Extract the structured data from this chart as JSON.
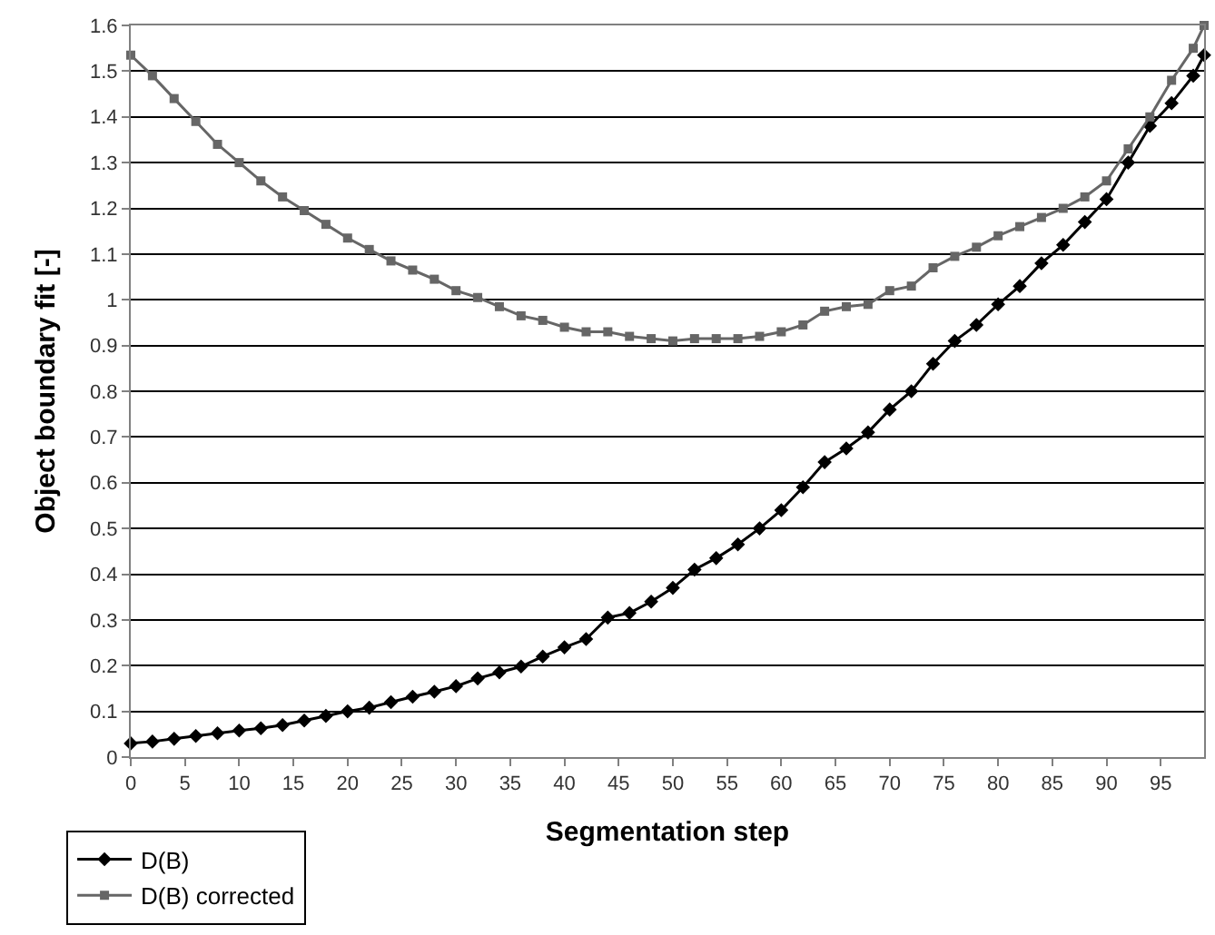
{
  "chart_data": {
    "type": "line",
    "xlabel": "Segmentation step",
    "ylabel": "Object boundary fit [-]",
    "x": [
      0,
      2,
      4,
      6,
      8,
      10,
      12,
      14,
      16,
      18,
      20,
      22,
      24,
      26,
      28,
      30,
      32,
      34,
      36,
      38,
      40,
      42,
      44,
      46,
      48,
      50,
      52,
      54,
      56,
      58,
      60,
      62,
      64,
      66,
      68,
      70,
      72,
      74,
      76,
      78,
      80,
      82,
      84,
      86,
      88,
      90,
      92,
      94,
      96,
      98,
      99
    ],
    "series": [
      {
        "name": "D(B)",
        "color": "#000000",
        "marker": "diamond",
        "values": [
          0.03,
          0.034,
          0.04,
          0.046,
          0.052,
          0.058,
          0.063,
          0.07,
          0.08,
          0.09,
          0.1,
          0.108,
          0.12,
          0.132,
          0.143,
          0.155,
          0.172,
          0.185,
          0.198,
          0.22,
          0.24,
          0.258,
          0.305,
          0.315,
          0.34,
          0.37,
          0.41,
          0.435,
          0.465,
          0.5,
          0.54,
          0.59,
          0.645,
          0.675,
          0.71,
          0.76,
          0.8,
          0.86,
          0.91,
          0.945,
          0.99,
          1.03,
          1.08,
          1.12,
          1.17,
          1.22,
          1.3,
          1.38,
          1.43,
          1.49,
          1.535
        ]
      },
      {
        "name": "D(B) corrected",
        "color": "#666666",
        "marker": "square",
        "values": [
          1.535,
          1.49,
          1.44,
          1.39,
          1.34,
          1.3,
          1.26,
          1.225,
          1.195,
          1.165,
          1.135,
          1.11,
          1.085,
          1.065,
          1.045,
          1.02,
          1.005,
          0.985,
          0.965,
          0.955,
          0.94,
          0.93,
          0.93,
          0.92,
          0.915,
          0.91,
          0.915,
          0.915,
          0.915,
          0.92,
          0.93,
          0.945,
          0.975,
          0.985,
          0.99,
          1.02,
          1.03,
          1.07,
          1.095,
          1.115,
          1.14,
          1.16,
          1.18,
          1.2,
          1.225,
          1.26,
          1.33,
          1.4,
          1.48,
          1.55,
          1.6
        ]
      }
    ],
    "xlim": [
      0,
      99
    ],
    "xticks": [
      0,
      5,
      10,
      15,
      20,
      25,
      30,
      35,
      40,
      45,
      50,
      55,
      60,
      65,
      70,
      75,
      80,
      85,
      90,
      95
    ],
    "ylim": [
      0,
      1.6
    ],
    "yticks": [
      0,
      0.1,
      0.2,
      0.3,
      0.4,
      0.5,
      0.6,
      0.7,
      0.8,
      0.9,
      1,
      1.1,
      1.2,
      1.3,
      1.4,
      1.5,
      1.6
    ],
    "grid": "y",
    "legend": "bottom left",
    "line_style": "solid"
  }
}
